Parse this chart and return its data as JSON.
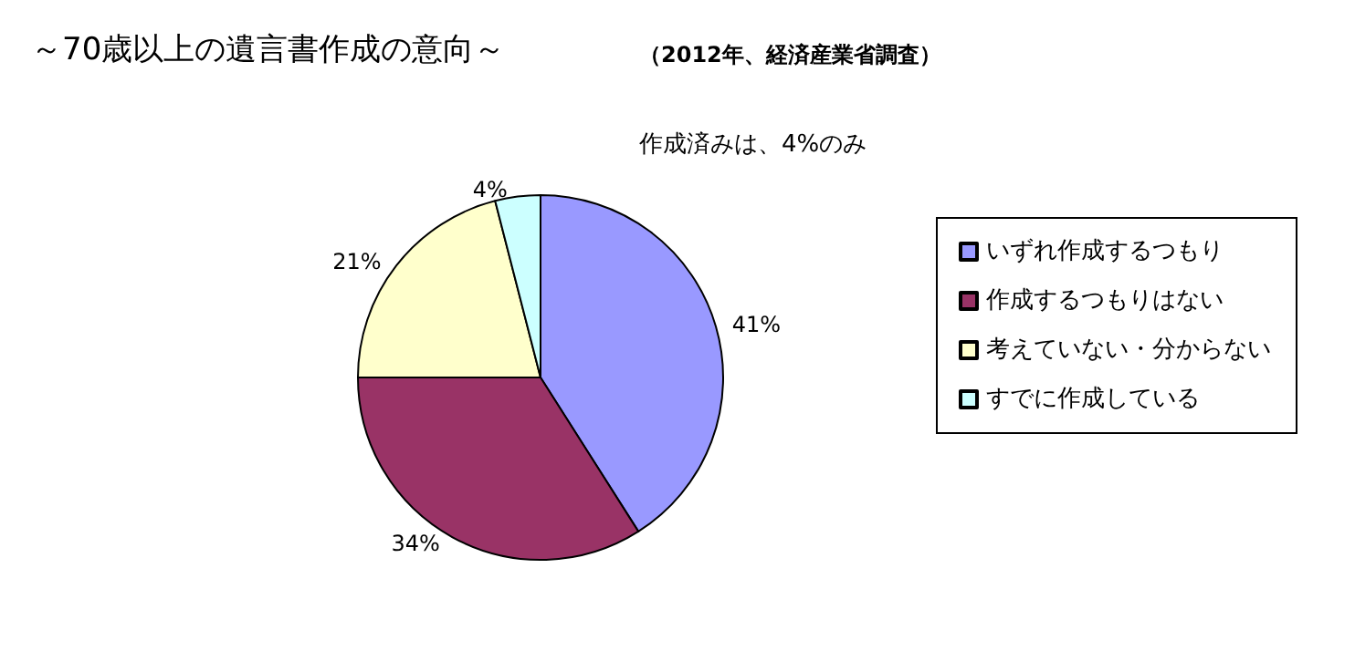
{
  "chart_data": {
    "type": "pie",
    "title": "～70歳以上の遺言書作成の意向～",
    "subtitle": "（2012年、経済産業省調査）",
    "categories": [
      "いずれ作成するつもり",
      "作成するつもりはない",
      "考えていない・分からない",
      "すでに作成している"
    ],
    "values": [
      41,
      34,
      21,
      4
    ],
    "colors": [
      "#9999ff",
      "#993366",
      "#ffffcc",
      "#ccffff"
    ],
    "annotations": [
      "作成済みは、4%のみ"
    ],
    "value_labels": [
      "41%",
      "34%",
      "21%",
      "4%"
    ],
    "legend": "right"
  }
}
